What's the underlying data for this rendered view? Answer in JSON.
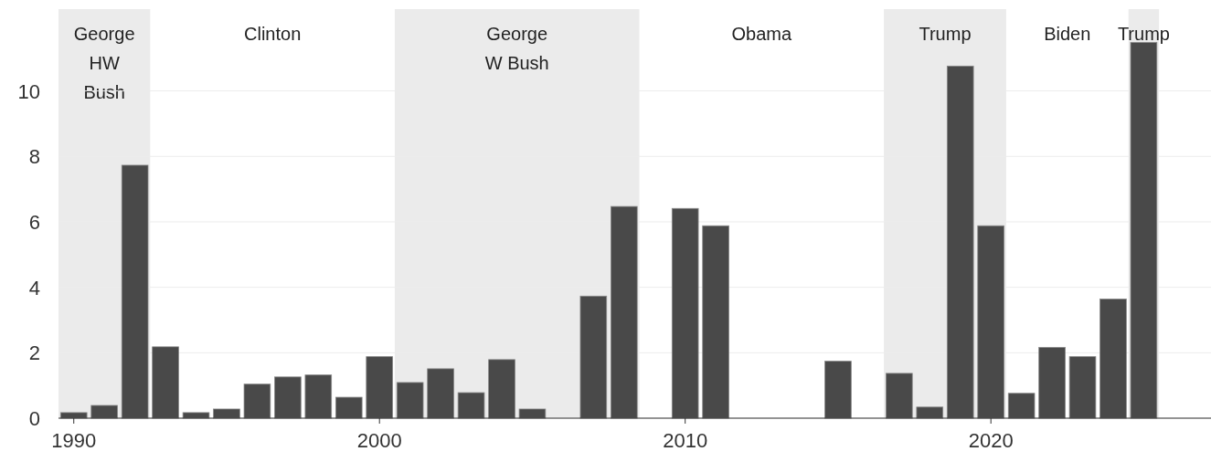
{
  "chart_data": {
    "type": "bar",
    "x": [
      1990,
      1991,
      1992,
      1993,
      1994,
      1995,
      1996,
      1997,
      1998,
      1999,
      2000,
      2001,
      2002,
      2003,
      2004,
      2005,
      2006,
      2007,
      2008,
      2009,
      2010,
      2011,
      2012,
      2013,
      2014,
      2015,
      2016,
      2017,
      2018,
      2019,
      2020,
      2021,
      2022,
      2023,
      2024,
      2025
    ],
    "values": [
      0.17,
      0.39,
      7.73,
      2.18,
      0.17,
      0.28,
      1.04,
      1.26,
      1.32,
      0.64,
      1.88,
      1.09,
      1.51,
      0.78,
      1.79,
      0.28,
      0,
      3.73,
      6.47,
      0,
      6.41,
      5.88,
      0,
      0,
      0,
      1.74,
      0,
      1.37,
      0.34,
      10.76,
      5.88,
      0.76,
      2.16,
      1.88,
      3.64,
      11.48
    ],
    "color": "#494949",
    "xlim": [
      1989.5,
      2027.2
    ],
    "xticks": [
      1990,
      2000,
      2010,
      2020
    ],
    "ylim": [
      0,
      12.5
    ],
    "yticks": [
      0,
      2,
      4,
      6,
      8,
      10
    ],
    "grid": "y",
    "bands": [
      {
        "axis": "x",
        "from": 1989.5,
        "to": 1992.5,
        "label": "George HW Bush",
        "color": "#ebebeb"
      },
      {
        "axis": "x",
        "from": 2000.5,
        "to": 2008.5,
        "label": "George W Bush",
        "color": "#ebebeb"
      },
      {
        "axis": "x",
        "from": 2016.5,
        "to": 2020.5,
        "label": "Trump",
        "color": "#ebebeb"
      },
      {
        "axis": "x",
        "from": 2024.5,
        "to": 2025.5,
        "label": "Trump",
        "color": "#ebebeb"
      }
    ],
    "annotations": [
      "Clinton",
      "Obama",
      "Biden"
    ]
  }
}
